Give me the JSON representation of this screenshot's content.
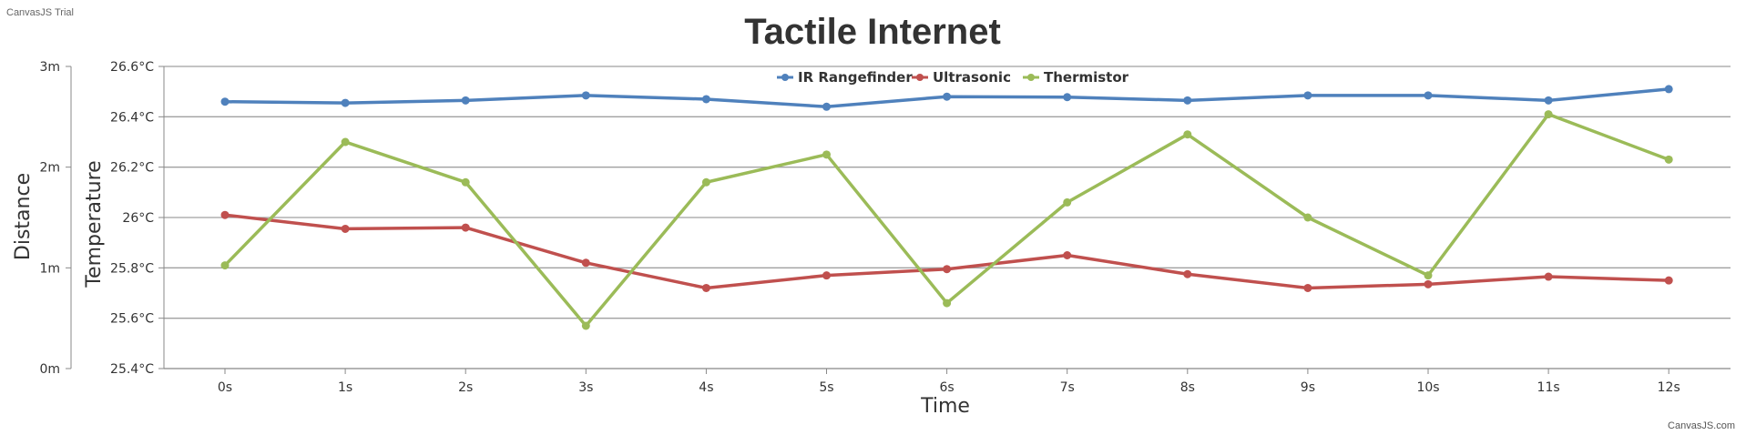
{
  "watermark": "CanvasJS Trial",
  "credit": "CanvasJS.com",
  "chart_data": {
    "type": "line",
    "title": "Tactile Internet",
    "xlabel": "Time",
    "ylabel_primary": "Temperature",
    "ylabel_secondary": "Distance",
    "categories": [
      "0s",
      "1s",
      "2s",
      "3s",
      "4s",
      "5s",
      "6s",
      "7s",
      "8s",
      "9s",
      "10s",
      "11s",
      "12s"
    ],
    "y_primary": {
      "min": 25.4,
      "max": 26.6,
      "ticks": [
        "25.4°C",
        "25.6°C",
        "25.8°C",
        "26°C",
        "26.2°C",
        "26.4°C",
        "26.6°C"
      ]
    },
    "y_secondary": {
      "min": 0,
      "max": 3,
      "ticks": [
        "0m",
        "1m",
        "2m",
        "3m"
      ]
    },
    "grid": true,
    "legend_position": "top-center",
    "series": [
      {
        "name": "IR Rangefinder",
        "axis": "primary",
        "color": "#4f81bc",
        "values": [
          26.46,
          26.455,
          26.465,
          26.485,
          26.47,
          26.44,
          26.48,
          26.478,
          26.465,
          26.485,
          26.485,
          26.465,
          26.51
        ]
      },
      {
        "name": "Ultrasonic",
        "axis": "primary",
        "color": "#c0504e",
        "values": [
          26.01,
          25.955,
          25.96,
          25.82,
          25.72,
          25.77,
          25.795,
          25.85,
          25.775,
          25.72,
          25.735,
          25.765,
          25.75
        ]
      },
      {
        "name": "Thermistor",
        "axis": "primary",
        "color": "#9bbb58",
        "values": [
          25.81,
          26.3,
          26.14,
          25.57,
          26.14,
          26.25,
          25.66,
          26.06,
          26.33,
          26.0,
          25.77,
          26.41,
          26.23
        ]
      }
    ]
  }
}
